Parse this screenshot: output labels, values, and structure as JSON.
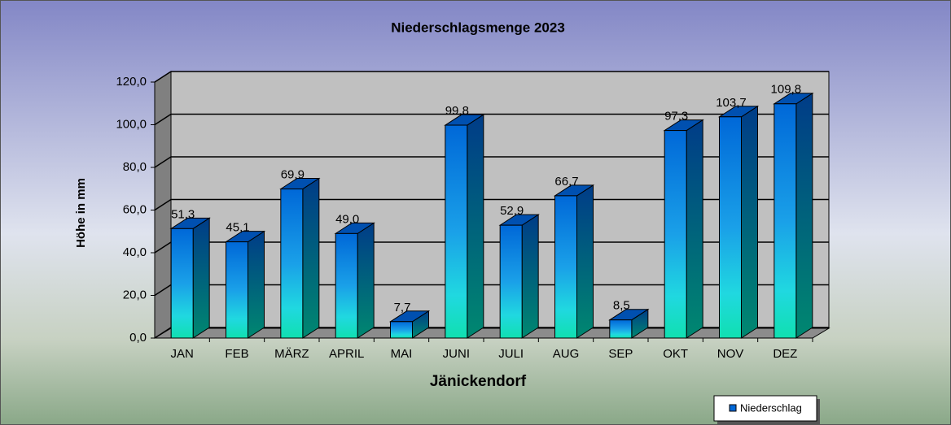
{
  "chart_data": {
    "type": "bar",
    "title": "Niederschlagsmenge  2023",
    "x_label": "Jänickendorf",
    "y_label": "Höhe in mm",
    "categories": [
      "JAN",
      "FEB",
      "MÄRZ",
      "APRIL",
      "MAI",
      "JUNI",
      "JULI",
      "AUG",
      "SEP",
      "OKT",
      "NOV",
      "DEZ"
    ],
    "series": [
      {
        "name": "Niederschlag",
        "color": "#0068d8",
        "values": [
          51.3,
          45.1,
          69.9,
          49.0,
          7.7,
          99.8,
          52.9,
          66.7,
          8.5,
          97.3,
          103.7,
          109.8
        ],
        "value_labels": [
          "51,3",
          "45,1",
          "69,9",
          "49,0",
          "7,7",
          "99,8",
          "52,9",
          "66,7",
          "8,5",
          "97,3",
          "103,7",
          "109,8"
        ]
      }
    ],
    "ylim": [
      0,
      120
    ],
    "yticks": [
      {
        "value": 0,
        "label": "0,0"
      },
      {
        "value": 20,
        "label": "20,0"
      },
      {
        "value": 40,
        "label": "40,0"
      },
      {
        "value": 60,
        "label": "60,0"
      },
      {
        "value": 80,
        "label": "80,0"
      },
      {
        "value": 100,
        "label": "100,0"
      },
      {
        "value": 120,
        "label": "120,0"
      }
    ],
    "grid": true,
    "legend": "bottom-right"
  }
}
